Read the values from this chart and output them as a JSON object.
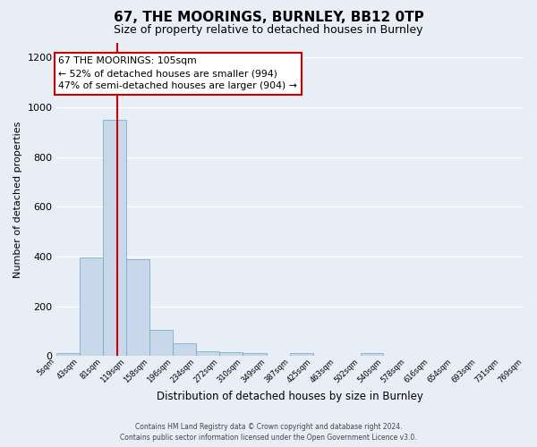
{
  "title": "67, THE MOORINGS, BURNLEY, BB12 0TP",
  "subtitle": "Size of property relative to detached houses in Burnley",
  "xlabel": "Distribution of detached houses by size in Burnley",
  "ylabel": "Number of detached properties",
  "bin_edges": [
    5,
    43,
    81,
    119,
    158,
    196,
    234,
    272,
    310,
    349,
    387,
    425,
    463,
    502,
    540,
    578,
    616,
    654,
    693,
    731,
    769
  ],
  "bar_heights": [
    10,
    395,
    950,
    390,
    105,
    53,
    20,
    15,
    10,
    0,
    10,
    0,
    0,
    10,
    0,
    0,
    0,
    0,
    0,
    0
  ],
  "bar_color": "#c8d8ea",
  "bar_edgecolor": "#7aafc8",
  "fig_bg_color": "#e8eef6",
  "ax_bg_color": "#e8eef6",
  "grid_color": "#ffffff",
  "red_line_x": 105,
  "ylim": [
    0,
    1260
  ],
  "yticks": [
    0,
    200,
    400,
    600,
    800,
    1000,
    1200
  ],
  "annotation_title": "67 THE MOORINGS: 105sqm",
  "annotation_line1": "← 52% of detached houses are smaller (994)",
  "annotation_line2": "47% of semi-detached houses are larger (904) →",
  "annotation_box_edgecolor": "#cc0000",
  "footer_line1": "Contains HM Land Registry data © Crown copyright and database right 2024.",
  "footer_line2": "Contains public sector information licensed under the Open Government Licence v3.0."
}
